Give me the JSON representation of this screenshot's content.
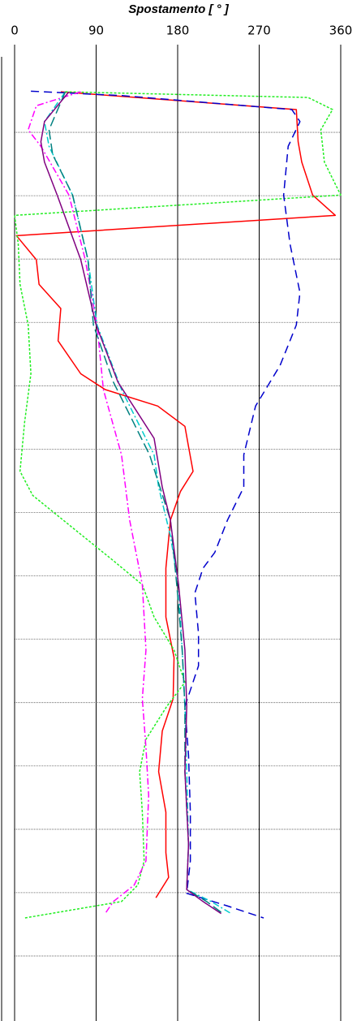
{
  "chart_data": {
    "type": "line",
    "orientation": "horizontal",
    "title": "Spostamento [ ° ]",
    "xlim": [
      0,
      360
    ],
    "xticks": [
      0,
      90,
      180,
      270,
      360
    ],
    "ylim": [
      0,
      15
    ],
    "yticks": [
      1,
      2,
      3,
      4,
      5,
      6,
      7,
      8,
      9,
      10,
      11,
      12,
      13,
      14
    ],
    "grid": true,
    "y_inverted": true,
    "series": [
      {
        "color": "#ff0000",
        "dash": "",
        "width": 1.5,
        "y": [
          0.36,
          0.64,
          1.15,
          1.47,
          1.99,
          2.31,
          2.63,
          3.01,
          3.4,
          3.78,
          4.29,
          4.81,
          5.06,
          5.32,
          5.64,
          5.96,
          6.35,
          6.67,
          7.12,
          7.88,
          8.65,
          9.29,
          9.94,
          10.45,
          11.09,
          11.73,
          12.37,
          12.76,
          13.08
        ],
        "values": [
          51,
          311,
          313,
          317,
          329,
          354,
          2,
          24,
          27,
          51,
          48,
          73,
          100,
          158,
          188,
          192,
          197,
          183,
          172,
          167,
          167,
          176,
          175,
          163,
          159,
          167,
          167,
          170,
          156
        ]
      },
      {
        "color": "#22ee22",
        "dash": "3 2",
        "width": 1.5,
        "y": [
          0.36,
          0.45,
          0.64,
          0.96,
          1.47,
          1.99,
          2.31,
          2.76,
          3.4,
          4.04,
          4.81,
          5.58,
          6.35,
          6.73,
          7.24,
          7.76,
          8.14,
          8.65,
          9.17,
          9.68,
          10.06,
          10.58,
          11.09,
          11.73,
          12.5,
          12.88,
          13.14,
          13.4
        ],
        "values": [
          56,
          324,
          351,
          338,
          342,
          360,
          0,
          4,
          6,
          15,
          18,
          11,
          6,
          20,
          64,
          109,
          141,
          154,
          176,
          188,
          168,
          145,
          138,
          141,
          143,
          136,
          118,
          11
        ]
      },
      {
        "color": "#0000cc",
        "dash": "10 6",
        "width": 1.5,
        "y": [
          0.35,
          0.42,
          0.64,
          0.83,
          1.22,
          1.99,
          2.76,
          3.53,
          4.04,
          4.68,
          5.32,
          6.09,
          6.6,
          7.12,
          7.63,
          7.88,
          8.27,
          8.91,
          9.42,
          10.06,
          10.83,
          11.73,
          12.5,
          13.01,
          13.21,
          13.4
        ],
        "values": [
          18,
          118,
          306,
          315,
          302,
          297,
          304,
          315,
          311,
          293,
          266,
          253,
          253,
          235,
          221,
          208,
          199,
          203,
          203,
          188,
          192,
          194,
          194,
          190,
          235,
          275
        ]
      },
      {
        "color": "#ff00ff",
        "dash": "8 3 2 3",
        "width": 1.5,
        "y": [
          0.36,
          0.58,
          0.96,
          1.22,
          1.99,
          3.01,
          4.04,
          5.06,
          6.09,
          7.12,
          8.14,
          9.17,
          9.94,
          10.71,
          11.47,
          12.5,
          12.88,
          13.14,
          13.33
        ],
        "values": [
          73,
          24,
          15,
          29,
          60,
          78,
          91,
          98,
          118,
          127,
          141,
          145,
          141,
          145,
          148,
          145,
          132,
          109,
          100
        ]
      },
      {
        "color": "#00cccc",
        "dash": "8 3 2 3",
        "width": 1.5,
        "y": [
          0.36,
          0.83,
          1.22,
          1.99,
          3.01,
          4.04,
          5.06,
          6.09,
          6.6,
          7.37,
          8.14,
          9.17,
          10.06,
          11.09,
          12.24,
          12.95,
          13.14,
          13.33
        ],
        "values": [
          56,
          33,
          38,
          64,
          81,
          91,
          118,
          154,
          159,
          172,
          181,
          185,
          188,
          190,
          192,
          190,
          217,
          239
        ]
      },
      {
        "color": "#008080",
        "dash": "12 5",
        "width": 1.5,
        "y": [
          0.36,
          0.96,
          1.35,
          1.99,
          3.01,
          4.04,
          4.94,
          6.09,
          7.12,
          8.14,
          9.17,
          10.06,
          11.09,
          12.24,
          12.95,
          13.14,
          13.33
        ],
        "values": [
          56,
          38,
          42,
          64,
          81,
          87,
          109,
          149,
          172,
          179,
          185,
          188,
          188,
          192,
          190,
          212,
          230
        ]
      },
      {
        "color": "#800080",
        "dash": "",
        "width": 1.5,
        "y": [
          0.36,
          0.83,
          1.15,
          1.47,
          1.99,
          3.01,
          4.04,
          4.94,
          5.83,
          6.6,
          7.12,
          8.14,
          9.17,
          10.06,
          11.09,
          12.24,
          12.95,
          13.14,
          13.33
        ],
        "values": [
          60,
          33,
          29,
          33,
          47,
          73,
          90,
          114,
          154,
          163,
          172,
          181,
          188,
          190,
          188,
          192,
          190,
          208,
          228
        ]
      }
    ]
  }
}
